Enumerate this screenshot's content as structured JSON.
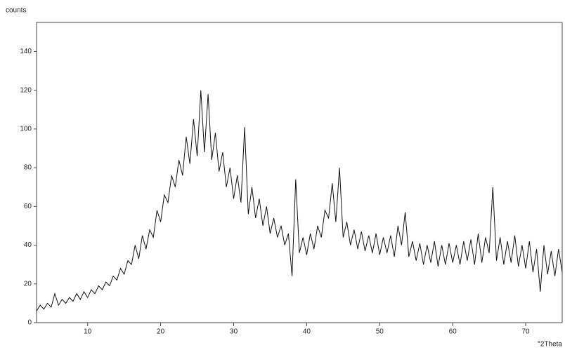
{
  "chart_data": {
    "type": "line",
    "y_label": "counts",
    "x_label": "°2Theta",
    "xlim": [
      3,
      75
    ],
    "ylim": [
      0,
      155
    ],
    "xticks": [
      10,
      20,
      30,
      40,
      50,
      60,
      70
    ],
    "yticks": [
      0,
      20,
      40,
      60,
      80,
      100,
      120,
      140
    ],
    "color": "#111111",
    "x": [
      3,
      3.5,
      4,
      4.5,
      5,
      5.5,
      6,
      6.5,
      7,
      7.5,
      8,
      8.5,
      9,
      9.5,
      10,
      10.5,
      11,
      11.5,
      12,
      12.5,
      13,
      13.5,
      14,
      14.5,
      15,
      15.5,
      16,
      16.5,
      17,
      17.5,
      18,
      18.5,
      19,
      19.5,
      20,
      20.5,
      21,
      21.5,
      22,
      22.5,
      23,
      23.5,
      24,
      24.5,
      25,
      25.5,
      26,
      26.5,
      27,
      27.5,
      28,
      28.5,
      29,
      29.5,
      30,
      30.5,
      31,
      31.5,
      32,
      32.5,
      33,
      33.5,
      34,
      34.5,
      35,
      35.5,
      36,
      36.5,
      37,
      37.5,
      38,
      38.5,
      39,
      39.5,
      40,
      40.5,
      41,
      41.5,
      42,
      42.5,
      43,
      43.5,
      44,
      44.5,
      45,
      45.5,
      46,
      46.5,
      47,
      47.5,
      48,
      48.5,
      49,
      49.5,
      50,
      50.5,
      51,
      51.5,
      52,
      52.5,
      53,
      53.5,
      54,
      54.5,
      55,
      55.5,
      56,
      56.5,
      57,
      57.5,
      58,
      58.5,
      59,
      59.5,
      60,
      60.5,
      61,
      61.5,
      62,
      62.5,
      63,
      63.5,
      64,
      64.5,
      65,
      65.5,
      66,
      66.5,
      67,
      67.5,
      68,
      68.5,
      69,
      69.5,
      70,
      70.5,
      71,
      71.5,
      72,
      72.5,
      73,
      73.5,
      74,
      74.5,
      75
    ],
    "values": [
      6,
      9,
      7,
      10,
      8,
      15,
      9,
      12,
      10,
      13,
      11,
      15,
      12,
      16,
      13,
      17,
      15,
      19,
      17,
      21,
      19,
      24,
      22,
      28,
      25,
      32,
      30,
      40,
      33,
      45,
      38,
      48,
      44,
      58,
      52,
      66,
      62,
      76,
      70,
      84,
      76,
      96,
      82,
      105,
      86,
      120,
      88,
      118,
      84,
      98,
      78,
      88,
      70,
      80,
      64,
      76,
      62,
      101,
      56,
      70,
      54,
      64,
      50,
      60,
      46,
      54,
      44,
      50,
      40,
      46,
      24,
      74,
      36,
      44,
      35,
      46,
      38,
      50,
      44,
      58,
      54,
      72,
      52,
      80,
      44,
      52,
      40,
      48,
      38,
      47,
      37,
      45,
      36,
      46,
      35,
      44,
      36,
      45,
      34,
      50,
      40,
      57,
      34,
      42,
      32,
      41,
      30,
      40,
      31,
      42,
      29,
      40,
      30,
      41,
      31,
      40,
      30,
      42,
      32,
      43,
      30,
      46,
      31,
      44,
      36,
      70,
      32,
      44,
      30,
      42,
      31,
      45,
      29,
      40,
      28,
      42,
      26,
      38,
      16,
      40,
      25,
      37,
      24,
      38,
      26
    ]
  }
}
